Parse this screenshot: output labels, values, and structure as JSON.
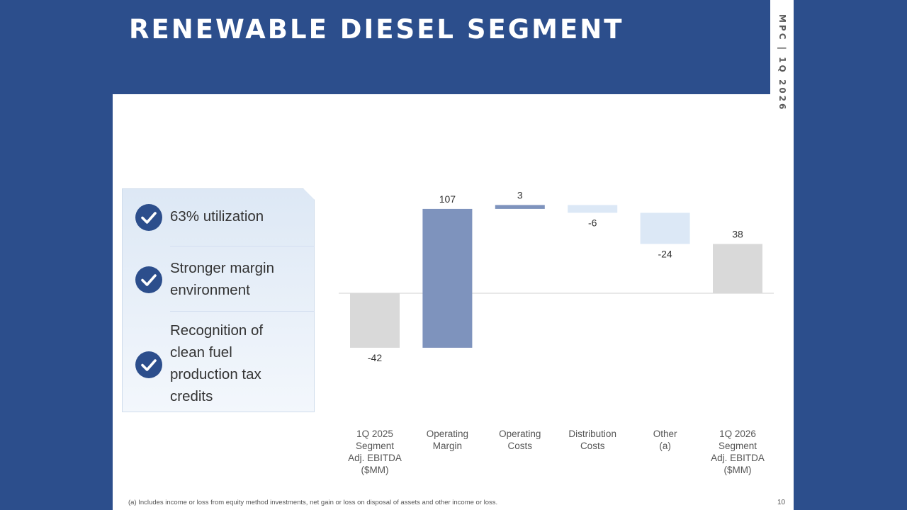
{
  "slide": {
    "title": "RENEWABLE DIESEL SEGMENT",
    "side_label": "MPC | 1Q 2026",
    "footnote": "(a) Includes income or loss from equity method investments, net gain or loss on disposal of assets and other income or loss.",
    "page_number": "10"
  },
  "callout": {
    "items": [
      {
        "lines": [
          "63% utilization"
        ]
      },
      {
        "lines": [
          "Stronger margin",
          "environment"
        ]
      },
      {
        "lines": [
          "Recognition of",
          "clean fuel",
          "production tax",
          "credits"
        ]
      }
    ]
  },
  "colors": {
    "background": "#2c4e8c",
    "check": "#2c4e8c",
    "total_bar": "#d9d9d9",
    "increase_bar": "#7e93bd",
    "decrease_bar": "#dce8f6"
  },
  "chart_data": {
    "type": "bar",
    "subtype": "waterfall",
    "unit": "$MM",
    "ylim": [
      -42,
      107
    ],
    "grid": false,
    "legend": "none",
    "categories": [
      [
        "1Q 2025",
        "Segment",
        "Adj. EBITDA",
        "($MM)"
      ],
      [
        "Operating",
        "Margin"
      ],
      [
        "Operating",
        "Costs"
      ],
      [
        "Distribution",
        "Costs"
      ],
      [
        "Other",
        "(a)"
      ],
      [
        "1Q 2026",
        "Segment",
        "Adj. EBITDA",
        "($MM)"
      ]
    ],
    "values": [
      -42,
      107,
      3,
      -6,
      -24,
      38
    ],
    "value_labels": [
      "-42",
      "107",
      "3",
      "-6",
      "-24",
      "38"
    ],
    "kinds": [
      "total",
      "increase",
      "increase",
      "decrease",
      "decrease",
      "total"
    ]
  }
}
